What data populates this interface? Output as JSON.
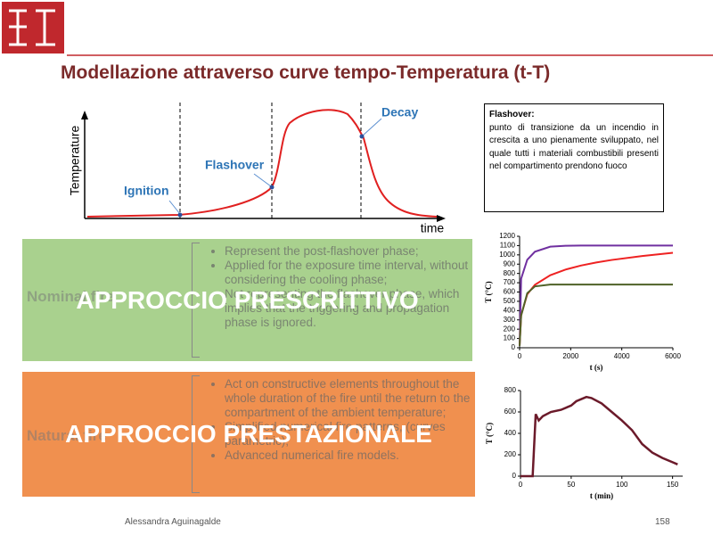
{
  "header": {
    "title": "Modellazione attraverso curve tempo-Temperatura (t-T)"
  },
  "diagram": {
    "y_label": "Temperature",
    "x_label": "time",
    "labels": [
      "Ignition",
      "Flashover",
      "Decay"
    ]
  },
  "note": {
    "title": "Flashover:",
    "text": "punto di transizione da un incendio in crescita a uno pienamente sviluppato, nel quale tutti i materiali combustibili presenti nel compartimento prendono fuoco"
  },
  "boxes": [
    {
      "label": "Nominal fire",
      "overlay": "APPROCCIO PRESCRITTIVO",
      "bullets": [
        "Represent the post-flashover phase;",
        "Applied for the exposure time interval, without considering the cooling phase;",
        "Not representing the flashover phase, which implies that the triggering and propagation phase is ignored."
      ]
    },
    {
      "label": "Natural fire",
      "overlay": "APPROCCIO PRESTAZIONALE",
      "bullets": [
        "Act on constructive elements throughout the whole duration of the fire until the return to the compartment of the ambient temperature;",
        "Simplified numerical fire patterns, (curves parametric);",
        "Advanced numerical fire models."
      ]
    }
  ],
  "footer": {
    "author": "Alessandra Aguinagalde",
    "page": "158"
  },
  "chart_data": [
    {
      "type": "line",
      "x_label": "t (s)",
      "y_label": "T (°C)",
      "x": [
        0,
        60,
        300,
        600,
        1200,
        1800,
        2400,
        3000,
        3600,
        4800,
        6000
      ],
      "series": [
        {
          "color": "#7030a0",
          "values": [
            20,
            743,
            948,
            1034,
            1088,
            1098,
            1100,
            1100,
            1100,
            1100,
            1100
          ]
        },
        {
          "color": "#ee2222",
          "values": [
            20,
            349,
            576,
            678,
            781,
            842,
            885,
            918,
            945,
            988,
            1022
          ]
        },
        {
          "color": "#4f6228",
          "values": [
            20,
            346,
            588,
            661,
            680,
            680,
            680,
            680,
            680,
            680,
            680
          ]
        }
      ],
      "xlim": [
        0,
        6000
      ],
      "xticks": [
        0,
        2000,
        4000,
        6000
      ],
      "ylim": [
        0,
        1200
      ],
      "yticks": [
        0,
        100,
        200,
        300,
        400,
        500,
        600,
        700,
        800,
        900,
        1000,
        1100,
        1200
      ]
    },
    {
      "type": "line",
      "x_label": "t (min)",
      "y_label": "T (°C)",
      "x": [
        0,
        12,
        15,
        18,
        22,
        30,
        40,
        50,
        55,
        65,
        70,
        80,
        90,
        100,
        110,
        120,
        130,
        140,
        150,
        155
      ],
      "series": [
        {
          "color": "#6b1a2a",
          "values": [
            0,
            0,
            580,
            520,
            560,
            600,
            620,
            660,
            700,
            740,
            730,
            680,
            600,
            520,
            430,
            300,
            220,
            170,
            130,
            110
          ]
        }
      ],
      "xlim": [
        0,
        160
      ],
      "xticks": [
        0,
        50,
        100,
        150
      ],
      "ylim": [
        0,
        800
      ],
      "yticks": [
        0,
        200,
        400,
        600,
        800
      ]
    }
  ]
}
